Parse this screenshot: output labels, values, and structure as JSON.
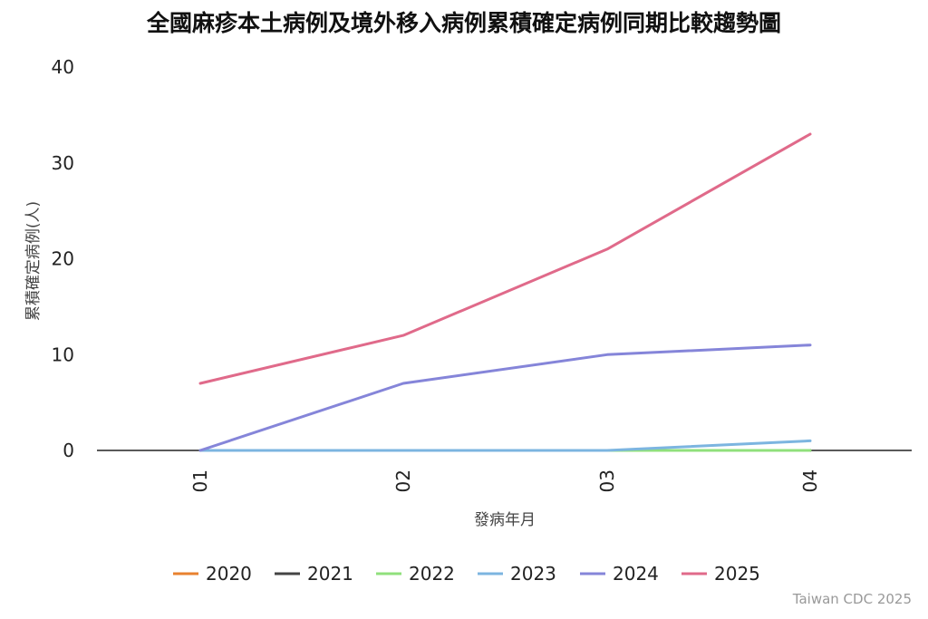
{
  "chart_data": {
    "type": "line",
    "title": "全國麻疹本土病例及境外移入病例累積確定病例同期比較趨勢圖",
    "xlabel": "發病年月",
    "ylabel": "累積確定病例(人)",
    "categories": [
      "01",
      "02",
      "03",
      "04"
    ],
    "ylim": [
      0,
      40
    ],
    "yticks": [
      0,
      10,
      20,
      30,
      40
    ],
    "grid": false,
    "legend_position": "bottom",
    "series": [
      {
        "name": "2020",
        "color": "#e8822f",
        "values": [
          0,
          0,
          0,
          0
        ]
      },
      {
        "name": "2021",
        "color": "#444444",
        "values": [
          0,
          0,
          0,
          0
        ]
      },
      {
        "name": "2022",
        "color": "#90e07c",
        "values": [
          0,
          0,
          0,
          0
        ]
      },
      {
        "name": "2023",
        "color": "#7cb5e0",
        "values": [
          0,
          0,
          0,
          1
        ]
      },
      {
        "name": "2024",
        "color": "#8585d9",
        "values": [
          0,
          7,
          10,
          11
        ]
      },
      {
        "name": "2025",
        "color": "#e06a8a",
        "values": [
          7,
          12,
          21,
          33
        ]
      }
    ]
  },
  "credit": "Taiwan CDC 2025"
}
